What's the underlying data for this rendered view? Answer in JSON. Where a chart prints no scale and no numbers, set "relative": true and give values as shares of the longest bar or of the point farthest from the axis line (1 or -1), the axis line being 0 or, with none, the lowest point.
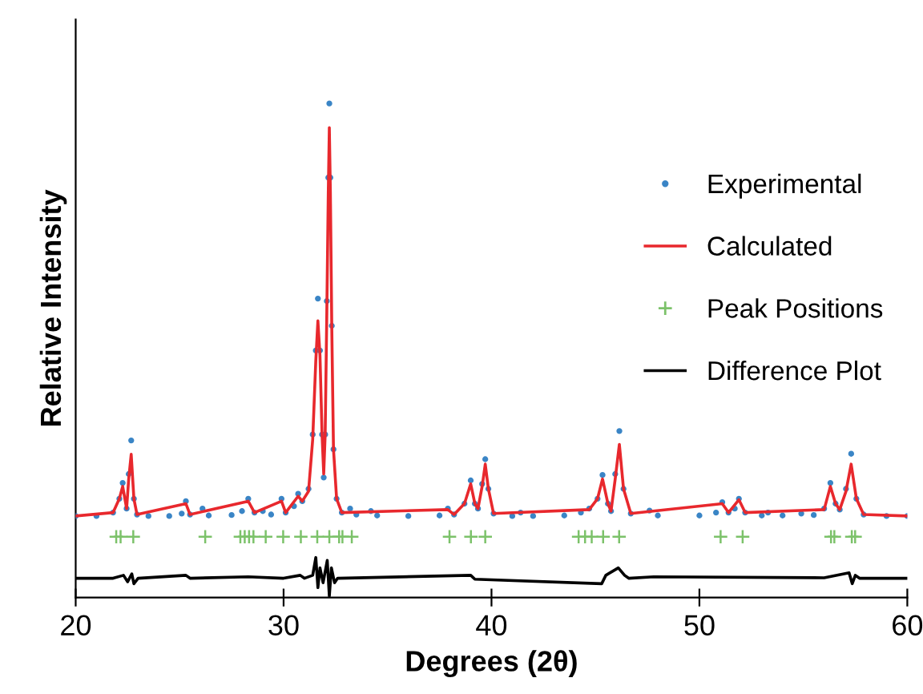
{
  "chart_data": {
    "type": "line",
    "xlabel": "Degrees (2θ)",
    "ylabel": "Relative Intensity",
    "relative": true,
    "xlim": [
      20,
      60
    ],
    "xticks": [
      20,
      30,
      40,
      50,
      60
    ],
    "grid": false,
    "legend": "center right",
    "series": [
      {
        "name": "Experimental",
        "type": "scatter",
        "marker": "circle",
        "color": "#3a85c6",
        "x": [
          20.0,
          21.0,
          21.8,
          22.1,
          22.26,
          22.45,
          22.55,
          22.67,
          22.8,
          22.95,
          23.5,
          24.5,
          25.1,
          25.3,
          25.5,
          26.1,
          26.4,
          27.5,
          28.0,
          28.3,
          28.6,
          29.0,
          29.4,
          29.9,
          30.1,
          30.5,
          30.7,
          30.9,
          31.2,
          31.4,
          31.55,
          31.65,
          31.75,
          31.85,
          31.93,
          32.0,
          32.08,
          32.15,
          32.2,
          32.25,
          32.32,
          32.4,
          32.55,
          32.8,
          33.2,
          33.5,
          34.2,
          34.5,
          36.0,
          37.5,
          37.9,
          38.2,
          38.7,
          39.0,
          39.2,
          39.35,
          39.55,
          39.7,
          39.85,
          40.1,
          41.0,
          41.4,
          42.0,
          43.5,
          44.3,
          44.7,
          45.1,
          45.34,
          45.6,
          45.75,
          45.95,
          46.15,
          46.35,
          46.7,
          47.6,
          48.0,
          50.0,
          50.8,
          51.1,
          51.4,
          51.7,
          51.9,
          52.2,
          53.0,
          53.3,
          54.0,
          54.9,
          55.5,
          56.0,
          56.3,
          56.55,
          56.75,
          57.05,
          57.3,
          57.55,
          57.9,
          59.0,
          60.0
        ],
        "values": [
          0.165,
          0.165,
          0.172,
          0.2,
          0.232,
          0.18,
          0.25,
          0.318,
          0.2,
          0.168,
          0.165,
          0.165,
          0.17,
          0.195,
          0.168,
          0.18,
          0.166,
          0.167,
          0.175,
          0.2,
          0.172,
          0.175,
          0.168,
          0.2,
          0.172,
          0.185,
          0.21,
          0.195,
          0.22,
          0.33,
          0.5,
          0.605,
          0.5,
          0.33,
          0.243,
          0.33,
          0.6,
          0.85,
          1.0,
          0.85,
          0.55,
          0.3,
          0.2,
          0.172,
          0.18,
          0.168,
          0.175,
          0.166,
          0.165,
          0.166,
          0.18,
          0.168,
          0.19,
          0.237,
          0.19,
          0.18,
          0.23,
          0.28,
          0.22,
          0.17,
          0.165,
          0.172,
          0.165,
          0.166,
          0.172,
          0.18,
          0.2,
          0.248,
          0.19,
          0.175,
          0.25,
          0.337,
          0.22,
          0.17,
          0.176,
          0.166,
          0.166,
          0.172,
          0.193,
          0.172,
          0.18,
          0.2,
          0.172,
          0.166,
          0.172,
          0.166,
          0.17,
          0.167,
          0.18,
          0.232,
          0.19,
          0.178,
          0.22,
          0.291,
          0.2,
          0.168,
          0.165,
          0.165
        ]
      },
      {
        "name": "Calculated",
        "color": "#e8282d",
        "x": [
          20.0,
          21.8,
          22.1,
          22.26,
          22.45,
          22.55,
          22.67,
          22.8,
          22.95,
          25.3,
          25.5,
          28.3,
          28.6,
          29.9,
          30.1,
          30.7,
          30.9,
          31.2,
          31.4,
          31.55,
          31.65,
          31.75,
          31.85,
          31.93,
          32.0,
          32.08,
          32.15,
          32.2,
          32.25,
          32.32,
          32.4,
          32.55,
          32.8,
          37.9,
          38.2,
          38.7,
          39.0,
          39.2,
          39.35,
          39.55,
          39.7,
          39.85,
          40.1,
          44.7,
          45.1,
          45.34,
          45.6,
          45.75,
          45.95,
          46.15,
          46.35,
          46.7,
          51.1,
          51.4,
          51.9,
          52.2,
          56.0,
          56.3,
          56.55,
          56.75,
          57.05,
          57.3,
          57.55,
          57.9,
          60.0
        ],
        "values": [
          0.165,
          0.172,
          0.2,
          0.225,
          0.18,
          0.24,
          0.29,
          0.2,
          0.168,
          0.19,
          0.168,
          0.195,
          0.172,
          0.195,
          0.172,
          0.205,
          0.195,
          0.215,
          0.32,
          0.48,
          0.56,
          0.49,
          0.33,
          0.25,
          0.33,
          0.58,
          0.82,
          0.951,
          0.82,
          0.54,
          0.3,
          0.2,
          0.172,
          0.178,
          0.168,
          0.19,
          0.23,
          0.19,
          0.18,
          0.225,
          0.27,
          0.22,
          0.17,
          0.178,
          0.2,
          0.24,
          0.19,
          0.175,
          0.24,
          0.31,
          0.22,
          0.17,
          0.19,
          0.172,
          0.198,
          0.172,
          0.178,
          0.225,
          0.19,
          0.178,
          0.215,
          0.27,
          0.2,
          0.168,
          0.165
        ]
      },
      {
        "name": "Peak Positions",
        "type": "scatter",
        "marker": "cross",
        "color": "#7cc26a",
        "x": [
          21.95,
          22.16,
          22.77,
          26.23,
          27.92,
          28.13,
          28.34,
          28.55,
          29.14,
          29.98,
          30.83,
          31.62,
          32.2,
          32.67,
          32.83,
          33.28,
          37.98,
          39.01,
          39.7,
          44.19,
          44.5,
          44.82,
          45.37,
          46.14,
          51.02,
          52.08,
          56.33,
          56.49,
          57.33,
          57.49
        ],
        "values": [
          0.123,
          0.123,
          0.123,
          0.123,
          0.123,
          0.123,
          0.123,
          0.123,
          0.123,
          0.123,
          0.123,
          0.123,
          0.123,
          0.123,
          0.123,
          0.123,
          0.123,
          0.123,
          0.123,
          0.123,
          0.123,
          0.123,
          0.123,
          0.123,
          0.123,
          0.123,
          0.123,
          0.123,
          0.123,
          0.123
        ]
      },
      {
        "name": "Difference Plot",
        "color": "#000000",
        "x": [
          20,
          21.8,
          22.3,
          22.5,
          22.7,
          22.8,
          23,
          25.3,
          25.5,
          28.3,
          30.0,
          30.8,
          31.0,
          31.4,
          31.55,
          31.65,
          31.75,
          31.9,
          32.1,
          32.2,
          32.3,
          32.45,
          32.6,
          39.0,
          39.2,
          45.3,
          45.5,
          46.1,
          46.4,
          46.6,
          47.8,
          56.0,
          57.2,
          57.35,
          57.5,
          57.7,
          60
        ],
        "values": [
          0.039,
          0.039,
          0.045,
          0.032,
          0.048,
          0.028,
          0.039,
          0.045,
          0.039,
          0.042,
          0.039,
          0.045,
          0.039,
          0.045,
          0.081,
          0.02,
          0.06,
          0.03,
          0.075,
          0.003,
          0.06,
          0.03,
          0.039,
          0.045,
          0.037,
          0.028,
          0.045,
          0.06,
          0.045,
          0.039,
          0.042,
          0.04,
          0.05,
          0.028,
          0.045,
          0.039,
          0.039
        ]
      }
    ]
  }
}
